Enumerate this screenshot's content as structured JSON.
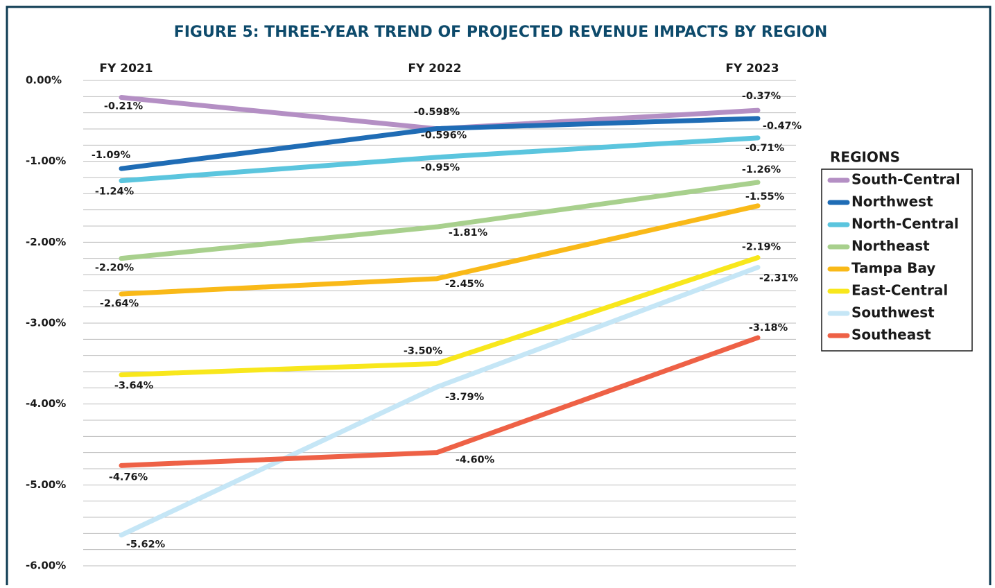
{
  "chart_data": {
    "type": "line",
    "title": "FIGURE 5: THREE-YEAR TREND OF PROJECTED REVENUE IMPACTS BY REGION",
    "categories": [
      "FY 2021",
      "FY 2022",
      "FY 2023"
    ],
    "ylim": [
      0,
      -6
    ],
    "yticks": [
      {
        "value": 0,
        "label": "0.00%"
      },
      {
        "value": -1,
        "label": "-1.00%"
      },
      {
        "value": -2,
        "label": "-2.00%"
      },
      {
        "value": -3,
        "label": "-3.00%"
      },
      {
        "value": -4,
        "label": "-4.00%"
      },
      {
        "value": -5,
        "label": "-5.00%"
      },
      {
        "value": -6,
        "label": "-6.00%"
      }
    ],
    "minor_yticks": [
      -0.2,
      -0.4,
      -0.6,
      -0.8,
      -1.2,
      -1.4,
      -1.6,
      -1.8,
      -2.2,
      -2.4,
      -2.6,
      -2.8,
      -3.2,
      -3.4,
      -3.6,
      -3.8,
      -4.2,
      -4.4,
      -4.6,
      -4.8,
      -5.2,
      -5.4,
      -5.6,
      -5.8
    ],
    "grid": true,
    "legend_title": "REGIONS",
    "legend": "right",
    "series": [
      {
        "name": "South-Central",
        "color": "#b48fc4",
        "values": [
          -0.21,
          -0.598,
          -0.37
        ],
        "value_labels": [
          "-0.21%",
          "-0.598%",
          "-0.37%"
        ]
      },
      {
        "name": "Northwest",
        "color": "#1f6cb5",
        "values": [
          -1.09,
          -0.596,
          -0.47
        ],
        "value_labels": [
          "-1.09%",
          "-0.596%",
          "-0.47%"
        ]
      },
      {
        "name": "North-Central",
        "color": "#5bc5de",
        "values": [
          -1.24,
          -0.95,
          -0.71
        ],
        "value_labels": [
          "-1.24%",
          "-0.95%",
          "-0.71%"
        ]
      },
      {
        "name": "Northeast",
        "color": "#a8d08d",
        "values": [
          -2.2,
          -1.81,
          -1.26
        ],
        "value_labels": [
          "-2.20%",
          "-1.81%",
          "-1.26%"
        ]
      },
      {
        "name": "Tampa Bay",
        "color": "#f9b918",
        "values": [
          -2.64,
          -2.45,
          -1.55
        ],
        "value_labels": [
          "-2.64%",
          "-2.45%",
          "-1.55%"
        ]
      },
      {
        "name": "East-Central",
        "color": "#f8e71c",
        "values": [
          -3.64,
          -3.5,
          -2.19
        ],
        "value_labels": [
          "-3.64%",
          "-3.50%",
          "-2.19%"
        ]
      },
      {
        "name": "Southwest",
        "color": "#c5e6f6",
        "values": [
          -5.62,
          -3.79,
          -2.31
        ],
        "value_labels": [
          "-5.62%",
          "-3.79%",
          "-2.31%"
        ]
      },
      {
        "name": "Southeast",
        "color": "#ee6146",
        "values": [
          -4.76,
          -4.6,
          -3.18
        ],
        "value_labels": [
          "-4.76%",
          "-4.60%",
          "-3.18%"
        ]
      }
    ]
  }
}
